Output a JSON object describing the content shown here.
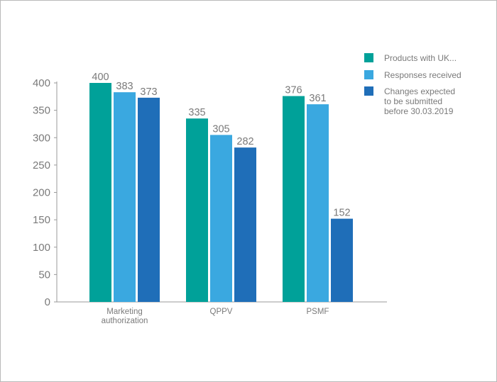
{
  "chart_data": {
    "type": "bar",
    "categories": [
      [
        "Marketing",
        "authorization"
      ],
      [
        "QPPV"
      ],
      [
        "PSMF"
      ]
    ],
    "series": [
      {
        "name": "Products with UK...",
        "color": "#00a199",
        "values": [
          400,
          335,
          376
        ]
      },
      {
        "name": "Responses received",
        "color": "#3aa8e0",
        "values": [
          383,
          305,
          361
        ]
      },
      {
        "name": "Changes expected to be submitted before 30.03.2019",
        "legend_lines": [
          "Changes expected",
          "to be submitted",
          "before 30.03.2019"
        ],
        "color": "#1f6eb8",
        "values": [
          373,
          282,
          152
        ]
      }
    ],
    "yticks": [
      0,
      50,
      100,
      150,
      200,
      250,
      300,
      350,
      400
    ],
    "ylim": [
      0,
      400
    ],
    "grid": false,
    "legend": "top-right"
  }
}
